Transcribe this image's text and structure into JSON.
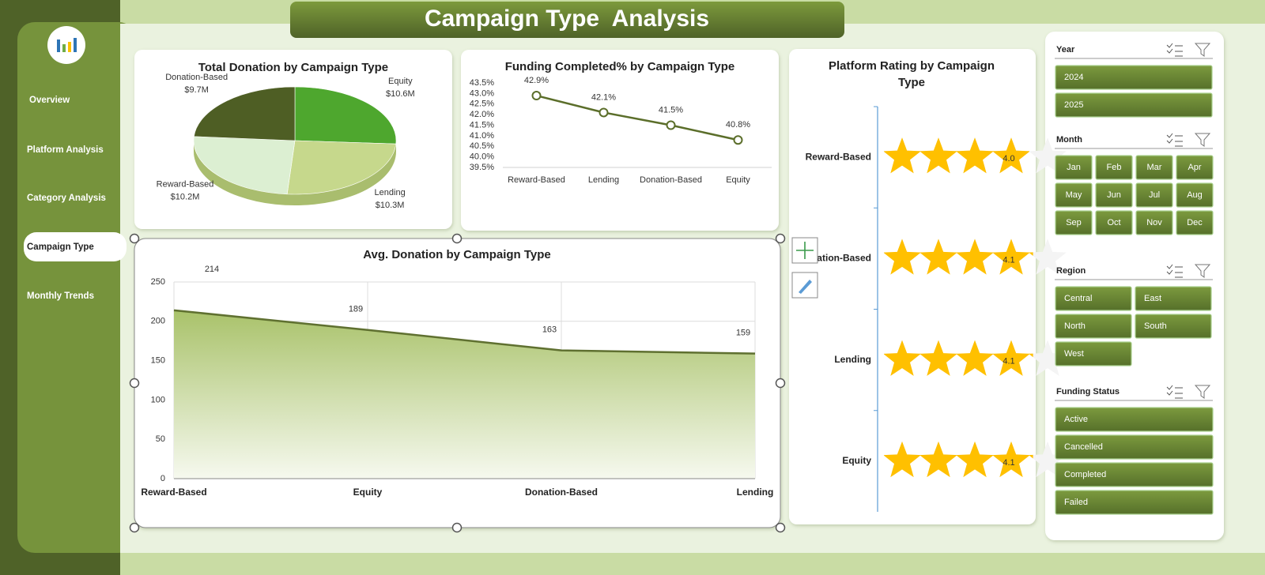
{
  "header": {
    "title": "Campaign Type  Analysis"
  },
  "nav": {
    "items": [
      "Overview",
      "Platform Analysis",
      "Category Analysis",
      "Campaign Type",
      "Monthly Trends"
    ],
    "active": 3
  },
  "chart_data": [
    {
      "type": "pie",
      "title": "Total Donation by Campaign Type",
      "categories": [
        "Equity",
        "Lending",
        "Reward-Based",
        "Donation-Based"
      ],
      "values": [
        10.6,
        10.3,
        10.2,
        9.7
      ],
      "value_labels": [
        "$10.6M",
        "$10.3M",
        "$10.2M",
        "$9.7M"
      ],
      "colors": [
        "#4ea72e",
        "#c6d88c",
        "#dcefd2",
        "#4e5e24"
      ]
    },
    {
      "type": "line",
      "title": "Funding Completed% by Campaign Type",
      "categories": [
        "Reward-Based",
        "Lending",
        "Donation-Based",
        "Equity"
      ],
      "values": [
        42.9,
        42.1,
        41.5,
        40.8
      ],
      "value_labels": [
        "42.9%",
        "42.1%",
        "41.5%",
        "40.8%"
      ],
      "color": "#5b6e2a",
      "ylim": [
        39.5,
        43.5
      ],
      "yticks": [
        {
          "value": 39.5,
          "label": "39.5%"
        },
        {
          "value": 40.0,
          "label": "40.0%"
        },
        {
          "value": 40.5,
          "label": "40.5%"
        },
        {
          "value": 41.0,
          "label": "41.0%"
        },
        {
          "value": 41.5,
          "label": "41.5%"
        },
        {
          "value": 42.0,
          "label": "42.0%"
        },
        {
          "value": 42.5,
          "label": "42.5%"
        },
        {
          "value": 43.0,
          "label": "43.0%"
        },
        {
          "value": 43.5,
          "label": "43.5%"
        }
      ]
    },
    {
      "type": "area",
      "title": "Avg. Donation by Campaign Type",
      "categories": [
        "Reward-Based",
        "Equity",
        "Donation-Based",
        "Lending"
      ],
      "values": [
        214,
        189,
        163,
        159
      ],
      "color": "#5f7030",
      "ylim": [
        0,
        250
      ],
      "yticks": [
        0,
        50,
        100,
        150,
        200,
        250
      ],
      "grid": true
    },
    {
      "type": "rating",
      "title": "Platform Rating by Campaign Type",
      "categories": [
        "Reward-Based",
        "Donation-Based",
        "Lending",
        "Equity"
      ],
      "values": [
        4.0,
        4.1,
        4.1,
        4.1
      ],
      "value_labels": [
        "4.0",
        "4.1",
        "4.1",
        "4.1"
      ],
      "xlim": [
        0,
        5
      ],
      "color": "#ffc000"
    }
  ],
  "slicers": [
    {
      "title": "Year",
      "items": [
        "2024",
        "2025"
      ]
    },
    {
      "title": "Month",
      "items": [
        "Jan",
        "Feb",
        "Mar",
        "Apr",
        "May",
        "Jun",
        "Jul",
        "Aug",
        "Sep",
        "Oct",
        "Nov",
        "Dec"
      ]
    },
    {
      "title": "Region",
      "items": [
        "Central",
        "East",
        "North",
        "South",
        "West"
      ]
    },
    {
      "title": "Funding Status",
      "items": [
        "Active",
        "Cancelled",
        "Completed",
        "Failed"
      ]
    }
  ]
}
